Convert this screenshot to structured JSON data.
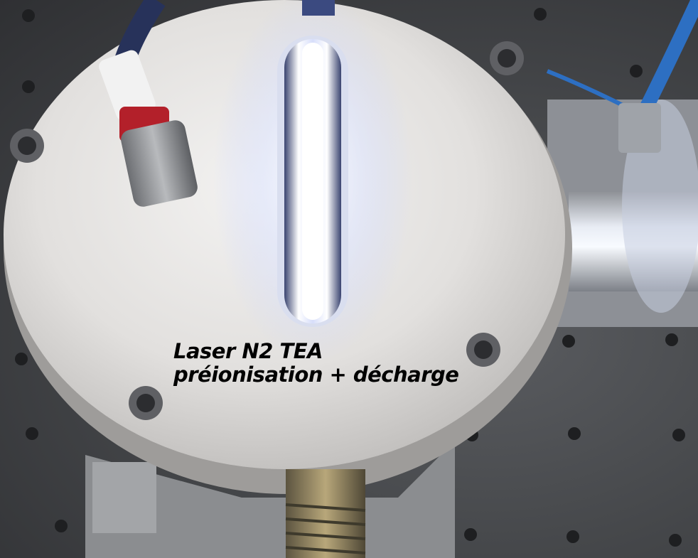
{
  "caption": {
    "line1": "Laser N2 TEA",
    "line2": "préionisation + décharge"
  },
  "colors": {
    "table": "#4a4c4f",
    "housing": "#e4e2df",
    "discharge_glow": "#eef2ff",
    "metal": "#b9bcc2",
    "text": "#000000"
  }
}
